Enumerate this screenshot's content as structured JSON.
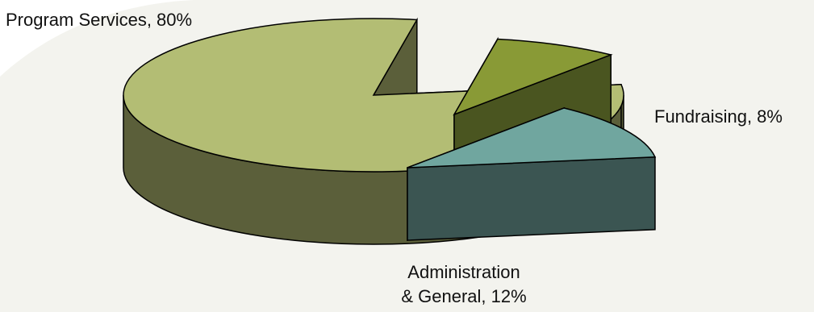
{
  "chart_data": {
    "type": "pie",
    "style": "3d-exploded",
    "title": "",
    "slices": [
      {
        "label": "Program Services, 80%",
        "value": 80,
        "color": "#b3bd74"
      },
      {
        "label": "Fundraising, 8%",
        "value": 8,
        "color": "#899a36"
      },
      {
        "label": "Administration & General, 12%",
        "label_lines": [
          "Administration",
          "& General, 12%"
        ],
        "value": 12,
        "color": "#70a69f"
      }
    ],
    "colors": {
      "background": "#f3f3ee",
      "program_side": "#5b5f3a",
      "fundraising_side": "#4a5520",
      "admin_side": "#3b5552",
      "outline": "#000000"
    }
  }
}
